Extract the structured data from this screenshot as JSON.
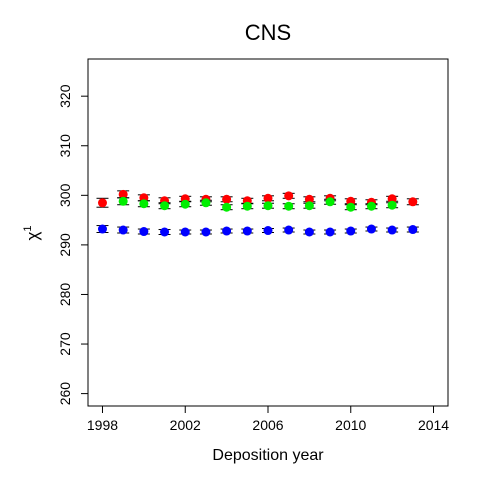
{
  "chart_data": {
    "type": "scatter",
    "title": "CNS",
    "xlabel": "Deposition year",
    "ylabel": "χ",
    "ylabel_superscript": "1",
    "xlim": [
      1997.3,
      2014.7
    ],
    "ylim": [
      257.5,
      327.5
    ],
    "x_ticks": [
      1998,
      2002,
      2006,
      2010,
      2014
    ],
    "y_ticks": [
      260,
      270,
      280,
      290,
      300,
      310,
      320
    ],
    "grid": false,
    "legend": "none",
    "series": [
      {
        "color": "#ff0000",
        "points": [
          {
            "x": 1998,
            "y": 298.5,
            "err": 0.9
          },
          {
            "x": 1999,
            "y": 300.2,
            "err": 0.7
          },
          {
            "x": 2000,
            "y": 299.5,
            "err": 0.6
          },
          {
            "x": 2001,
            "y": 298.9,
            "err": 0.6
          },
          {
            "x": 2002,
            "y": 299.3,
            "err": 0.5
          },
          {
            "x": 2003,
            "y": 299.2,
            "err": 0.5
          },
          {
            "x": 2004,
            "y": 299.2,
            "err": 0.5
          },
          {
            "x": 2005,
            "y": 298.9,
            "err": 0.5
          },
          {
            "x": 2006,
            "y": 299.4,
            "err": 0.5
          },
          {
            "x": 2007,
            "y": 299.9,
            "err": 0.5
          },
          {
            "x": 2008,
            "y": 299.2,
            "err": 0.5
          },
          {
            "x": 2009,
            "y": 299.4,
            "err": 0.5
          },
          {
            "x": 2010,
            "y": 298.8,
            "err": 0.5
          },
          {
            "x": 2011,
            "y": 298.6,
            "err": 0.5
          },
          {
            "x": 2012,
            "y": 299.3,
            "err": 0.5
          },
          {
            "x": 2013,
            "y": 298.7,
            "err": 0.6
          }
        ]
      },
      {
        "color": "#00ee00",
        "points": [
          {
            "x": 1999,
            "y": 298.8,
            "err": 0.7
          },
          {
            "x": 2000,
            "y": 298.3,
            "err": 0.6
          },
          {
            "x": 2001,
            "y": 297.9,
            "err": 0.6
          },
          {
            "x": 2002,
            "y": 298.2,
            "err": 0.5
          },
          {
            "x": 2003,
            "y": 298.5,
            "err": 0.5
          },
          {
            "x": 2004,
            "y": 297.6,
            "err": 0.5
          },
          {
            "x": 2005,
            "y": 297.8,
            "err": 0.5
          },
          {
            "x": 2006,
            "y": 297.9,
            "err": 0.5
          },
          {
            "x": 2007,
            "y": 297.8,
            "err": 0.5
          },
          {
            "x": 2008,
            "y": 297.9,
            "err": 0.5
          },
          {
            "x": 2009,
            "y": 298.7,
            "err": 0.5
          },
          {
            "x": 2010,
            "y": 297.6,
            "err": 0.5
          },
          {
            "x": 2011,
            "y": 297.8,
            "err": 0.5
          },
          {
            "x": 2012,
            "y": 298.0,
            "err": 0.5
          }
        ]
      },
      {
        "color": "#0000ff",
        "points": [
          {
            "x": 1998,
            "y": 293.2,
            "err": 0.7
          },
          {
            "x": 1999,
            "y": 293.0,
            "err": 0.6
          },
          {
            "x": 2000,
            "y": 292.7,
            "err": 0.5
          },
          {
            "x": 2001,
            "y": 292.6,
            "err": 0.5
          },
          {
            "x": 2002,
            "y": 292.6,
            "err": 0.4
          },
          {
            "x": 2003,
            "y": 292.6,
            "err": 0.4
          },
          {
            "x": 2004,
            "y": 292.8,
            "err": 0.4
          },
          {
            "x": 2005,
            "y": 292.8,
            "err": 0.4
          },
          {
            "x": 2006,
            "y": 292.9,
            "err": 0.4
          },
          {
            "x": 2007,
            "y": 293.0,
            "err": 0.4
          },
          {
            "x": 2008,
            "y": 292.6,
            "err": 0.4
          },
          {
            "x": 2009,
            "y": 292.6,
            "err": 0.4
          },
          {
            "x": 2010,
            "y": 292.8,
            "err": 0.4
          },
          {
            "x": 2011,
            "y": 293.2,
            "err": 0.4
          },
          {
            "x": 2012,
            "y": 293.0,
            "err": 0.4
          },
          {
            "x": 2013,
            "y": 293.1,
            "err": 0.5
          }
        ]
      }
    ]
  }
}
